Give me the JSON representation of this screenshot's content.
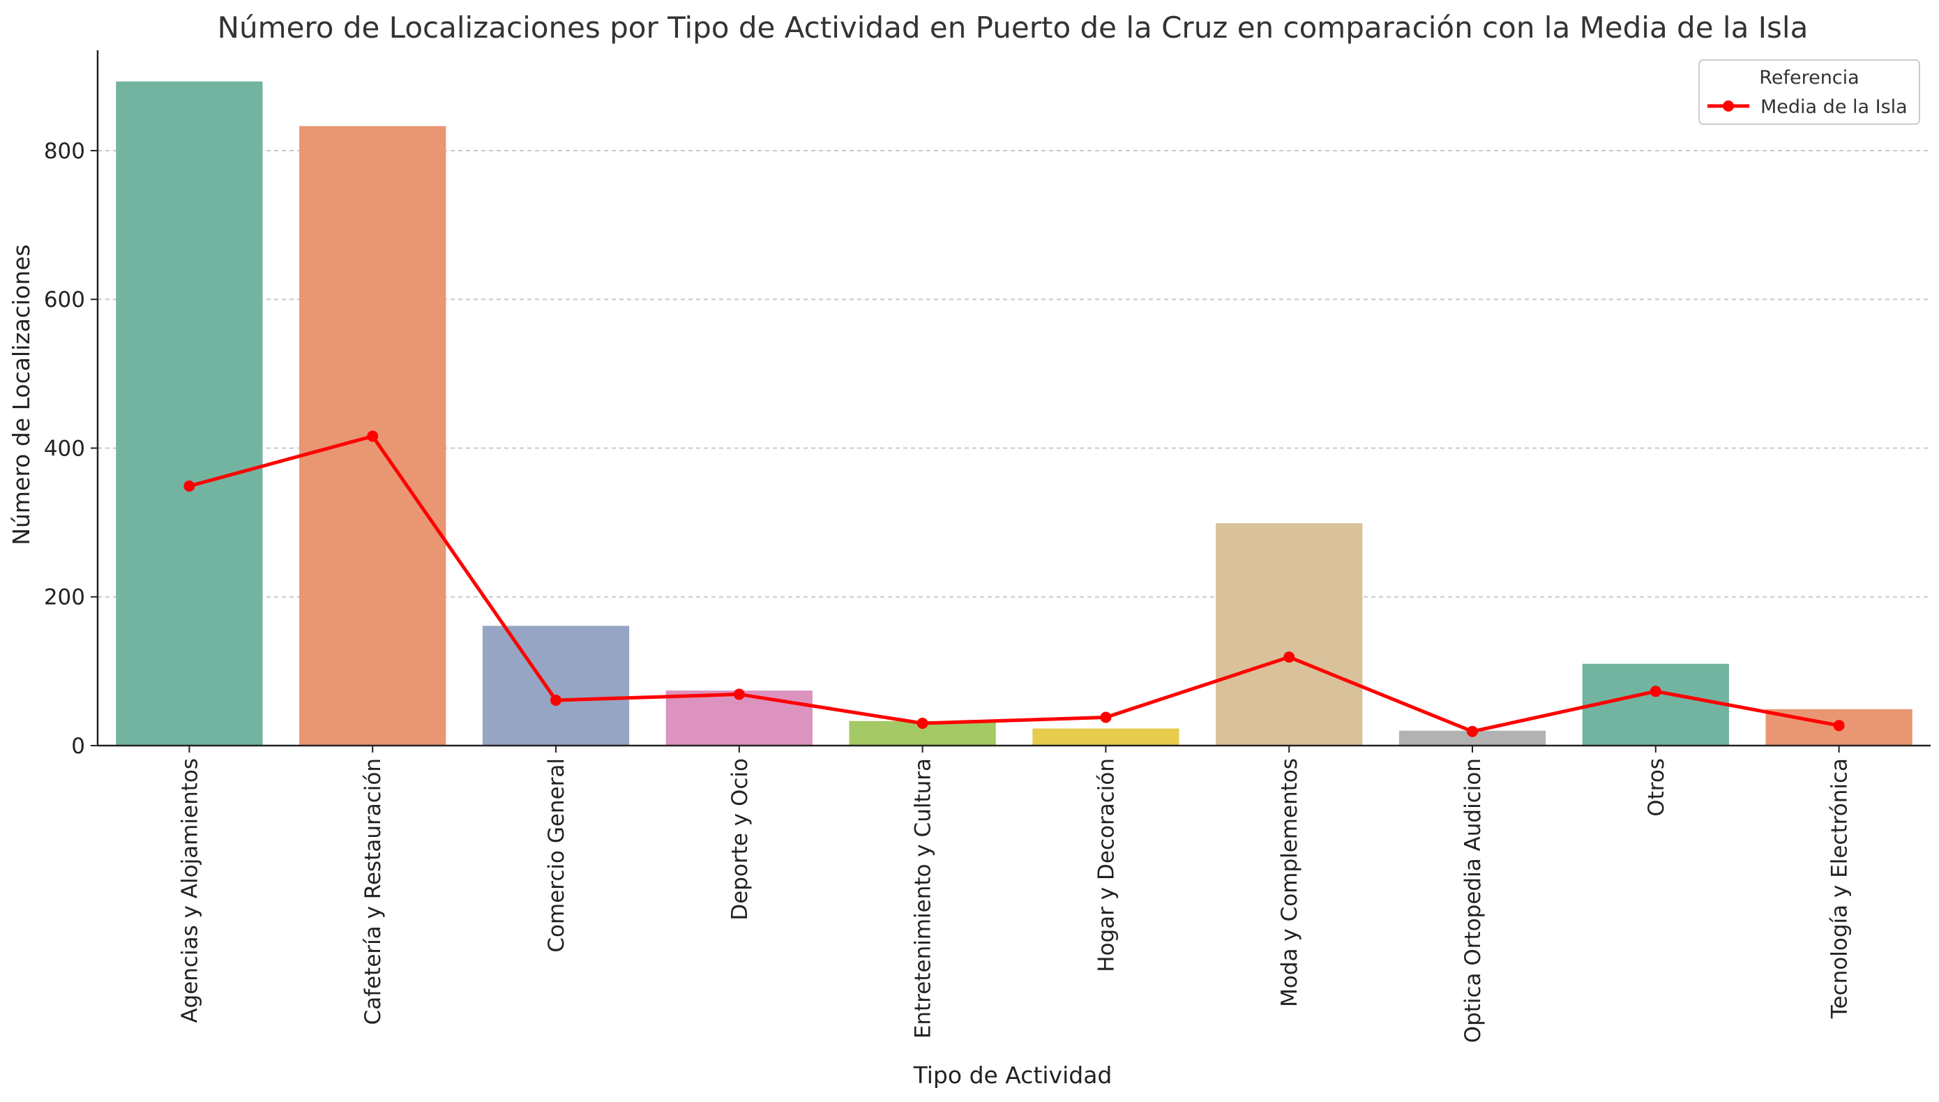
{
  "chart_data": {
    "type": "bar",
    "title": "Número de Localizaciones por Tipo de Actividad en Puerto de la Cruz en comparación con la Media de la Isla",
    "xlabel": "Tipo de Actividad",
    "ylabel": "Número de Localizaciones",
    "ylim": [
      0,
      935
    ],
    "yticks": [
      0,
      200,
      400,
      600,
      800
    ],
    "grid": "horizontal-dashed",
    "categories": [
      "Agencias y Alojamientos",
      "Cafetería y Restauración",
      "Comercio General",
      "Deporte y Ocio",
      "Entretenimiento y Cultura",
      "Hogar y Decoración",
      "Moda y Complementos",
      "Optica Ortopedia Audicion",
      "Otros",
      "Tecnología y Electrónica"
    ],
    "values": [
      893,
      833,
      161,
      74,
      33,
      23,
      299,
      20,
      110,
      49
    ],
    "bar_colors": [
      "#72b49f",
      "#e99673",
      "#96a5c3",
      "#dd93bf",
      "#a4c965",
      "#e6cb4c",
      "#d9c19b",
      "#b2b2b2",
      "#72b49f",
      "#e99673"
    ],
    "series": [
      {
        "name": "Media de la Isla",
        "type": "line",
        "color": "#ff0000",
        "values": [
          349,
          416,
          61,
          69,
          30,
          38,
          119,
          19,
          73,
          27
        ]
      }
    ],
    "legend": {
      "title": "Referencia",
      "placement": "top-right"
    }
  }
}
